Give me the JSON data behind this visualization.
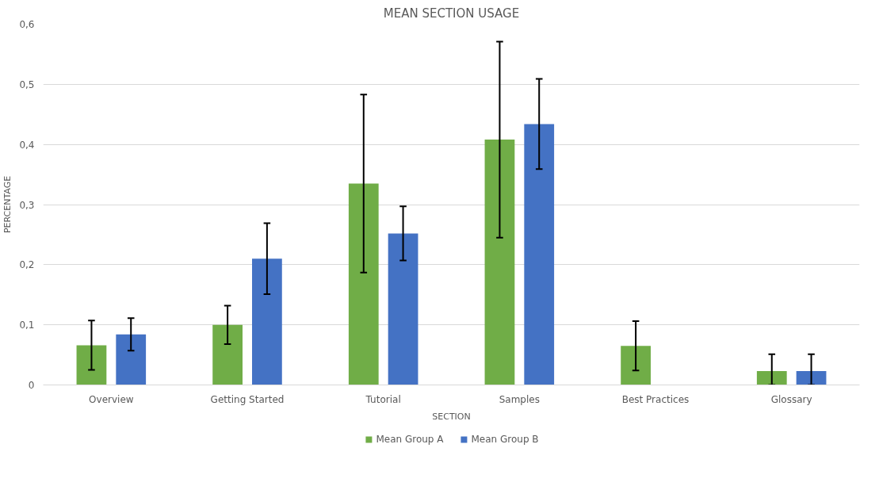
{
  "chart_data": {
    "type": "bar",
    "title": "MEAN SECTION USAGE",
    "xlabel": "SECTION",
    "ylabel": "PERCENTAGE",
    "categories": [
      "Overview",
      "Getting Started",
      "Tutorial",
      "Samples",
      "Best Practices",
      "Glossary"
    ],
    "series": [
      {
        "name": "Mean Group A",
        "color": "#70ad47",
        "values": [
          0.066,
          0.1,
          0.335,
          0.408,
          0.065,
          0.023
        ],
        "errors": [
          0.041,
          0.032,
          0.148,
          0.163,
          0.041,
          [
            0,
            0.051
          ]
        ]
      },
      {
        "name": "Mean Group B",
        "color": "#4472c4",
        "values": [
          0.084,
          0.21,
          0.252,
          0.434,
          null,
          0.023
        ],
        "errors": [
          0.027,
          0.059,
          0.045,
          0.075,
          null,
          [
            0,
            0.051
          ]
        ]
      }
    ],
    "ylim": [
      0,
      0.6
    ],
    "yticks": [
      0,
      {
        "value": 0.1,
        "label": "0,1"
      },
      {
        "value": 0.2,
        "label": "0,2"
      },
      {
        "value": 0.3,
        "label": "0,3"
      },
      {
        "value": 0.4,
        "label": "0,4"
      },
      {
        "value": 0.5,
        "label": "0,5"
      },
      {
        "value": 0.6,
        "label": "0,6"
      }
    ],
    "grid": "y",
    "legend": "bottom"
  }
}
